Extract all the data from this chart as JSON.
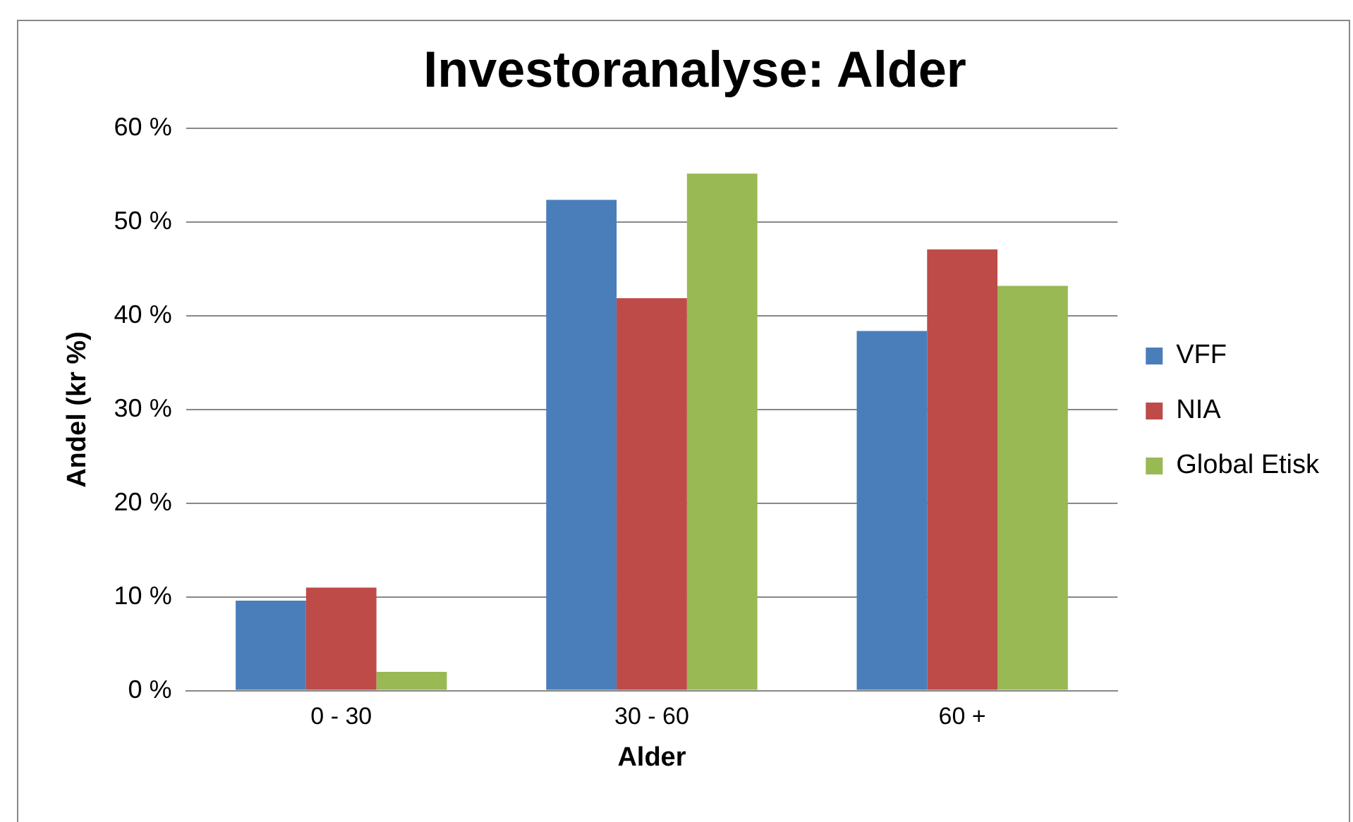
{
  "chart_data": {
    "type": "bar",
    "title": "Investoranalyse: Alder",
    "xlabel": "Alder",
    "ylabel": "Andel (kr %)",
    "categories": [
      "0 - 30",
      "30 - 60",
      "60 +"
    ],
    "series": [
      {
        "name": "VFF",
        "color": "#4a7ebb",
        "values": [
          9.6,
          52.4,
          38.4
        ]
      },
      {
        "name": "NIA",
        "color": "#be4b48",
        "values": [
          11.0,
          41.9,
          47.1
        ]
      },
      {
        "name": "Global Etisk",
        "color": "#98b954",
        "values": [
          2.0,
          55.2,
          43.2
        ]
      }
    ],
    "ylim": [
      0,
      60
    ],
    "yticks": [
      {
        "value": 0,
        "label": "0 %"
      },
      {
        "value": 10,
        "label": "10 %"
      },
      {
        "value": 20,
        "label": "20 %"
      },
      {
        "value": 30,
        "label": "30 %"
      },
      {
        "value": 40,
        "label": "40 %"
      },
      {
        "value": 50,
        "label": "50 %"
      },
      {
        "value": 60,
        "label": "60 %"
      }
    ],
    "grid": "y",
    "legend": "right"
  }
}
